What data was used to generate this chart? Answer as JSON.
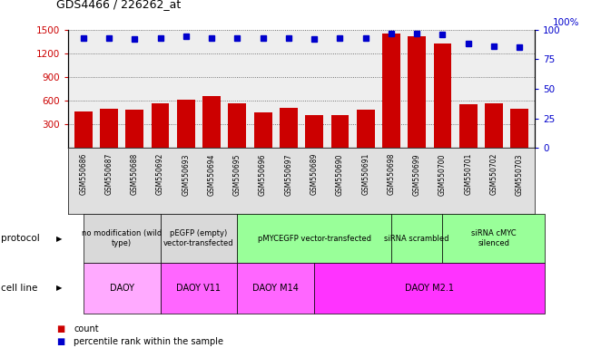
{
  "title": "GDS4466 / 226262_at",
  "samples": [
    "GSM550686",
    "GSM550687",
    "GSM550688",
    "GSM550692",
    "GSM550693",
    "GSM550694",
    "GSM550695",
    "GSM550696",
    "GSM550697",
    "GSM550689",
    "GSM550690",
    "GSM550691",
    "GSM550698",
    "GSM550699",
    "GSM550700",
    "GSM550701",
    "GSM550702",
    "GSM550703"
  ],
  "counts": [
    460,
    500,
    490,
    570,
    610,
    660,
    570,
    450,
    510,
    420,
    420,
    490,
    1450,
    1420,
    1320,
    550,
    560,
    500
  ],
  "percentiles": [
    93,
    93,
    92,
    93,
    94,
    93,
    93,
    93,
    93,
    92,
    93,
    93,
    97,
    97,
    96,
    88,
    86,
    85
  ],
  "bar_color": "#cc0000",
  "dot_color": "#0000cc",
  "ylim_left": [
    0,
    1500
  ],
  "ylim_right": [
    0,
    100
  ],
  "yticks_left": [
    300,
    600,
    900,
    1200,
    1500
  ],
  "yticks_right": [
    0,
    25,
    50,
    75,
    100
  ],
  "ylabel_left_color": "#cc0000",
  "ylabel_right_color": "#0000cc",
  "grid_color": "#555555",
  "protocol_groups": [
    {
      "label": "no modification (wild\ntype)",
      "start": 0,
      "end": 3,
      "color": "#d9d9d9"
    },
    {
      "label": "pEGFP (empty)\nvector-transfected",
      "start": 3,
      "end": 6,
      "color": "#d9d9d9"
    },
    {
      "label": "pMYCEGFP vector-transfected",
      "start": 6,
      "end": 12,
      "color": "#99ff99"
    },
    {
      "label": "siRNA scrambled",
      "start": 12,
      "end": 14,
      "color": "#99ff99"
    },
    {
      "label": "siRNA cMYC\nsilenced",
      "start": 14,
      "end": 18,
      "color": "#99ff99"
    }
  ],
  "cell_line_groups": [
    {
      "label": "DAOY",
      "start": 0,
      "end": 3,
      "color": "#ffaaff"
    },
    {
      "label": "DAOY V11",
      "start": 3,
      "end": 6,
      "color": "#ff66ff"
    },
    {
      "label": "DAOY M14",
      "start": 6,
      "end": 9,
      "color": "#ff66ff"
    },
    {
      "label": "DAOY M2.1",
      "start": 9,
      "end": 18,
      "color": "#ff33ff"
    }
  ],
  "protocol_label": "protocol",
  "cell_line_label": "cell line",
  "legend_count_color": "#cc0000",
  "legend_dot_color": "#0000cc",
  "xtick_bg_color": "#e0e0e0"
}
